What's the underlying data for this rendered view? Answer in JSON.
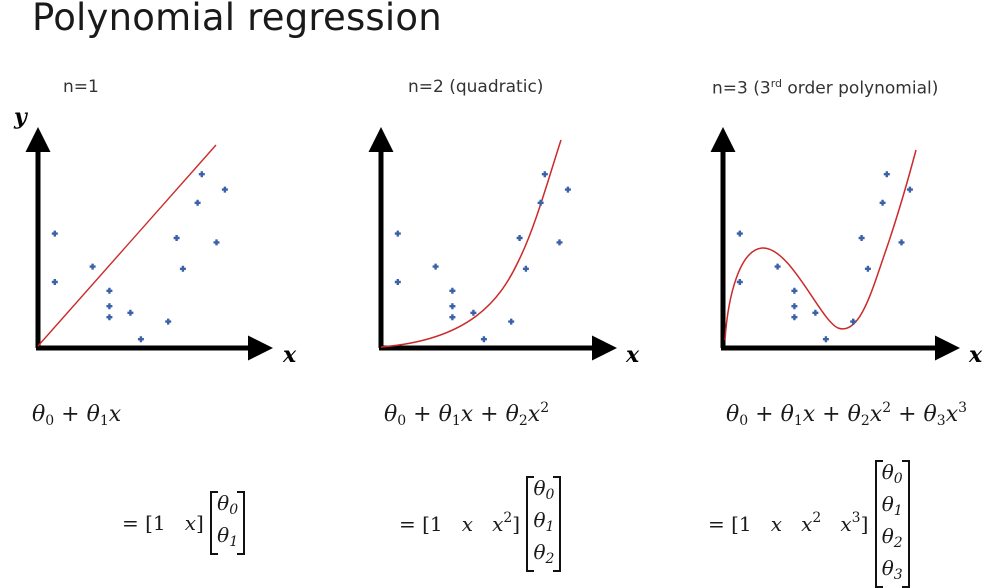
{
  "title": "Polynomial regression",
  "panels": [
    {
      "label": "n=1",
      "y_axis_label": "y",
      "x_axis_label": "x",
      "formula": {
        "terms": [
          "θ0",
          "θ1x"
        ]
      },
      "row_vector": [
        "1",
        "x"
      ],
      "col_vector": [
        "θ0",
        "θ1"
      ]
    },
    {
      "label": "n=2 (quadratic)",
      "x_axis_label": "x",
      "formula": {
        "terms": [
          "θ0",
          "θ1x",
          "θ2x2"
        ]
      },
      "row_vector": [
        "1",
        "x",
        "x2"
      ],
      "col_vector": [
        "θ0",
        "θ1",
        "θ2"
      ]
    },
    {
      "label_main": "n=3 (3",
      "label_sup": "rd",
      "label_tail": " order polynomial)",
      "x_axis_label": "x",
      "formula": {
        "terms": [
          "θ0",
          "θ1x",
          "θ2x2",
          "θ3x3"
        ]
      },
      "row_vector": [
        "1",
        "x",
        "x2",
        "x3"
      ],
      "col_vector": [
        "θ0",
        "θ1",
        "θ2",
        "θ3"
      ]
    }
  ],
  "colors": {
    "points": "#3a62a8",
    "fit_curve": "#cc2a2a",
    "axes": "#000000"
  },
  "chart_data": {
    "type": "scatter",
    "points": [
      [
        0.8,
        5.2
      ],
      [
        0.8,
        3.0
      ],
      [
        2.6,
        3.7
      ],
      [
        3.4,
        2.6
      ],
      [
        3.4,
        1.9
      ],
      [
        3.4,
        1.4
      ],
      [
        4.4,
        1.6
      ],
      [
        4.9,
        0.4
      ],
      [
        6.2,
        1.2
      ],
      [
        6.6,
        5.0
      ],
      [
        6.9,
        3.6
      ],
      [
        7.6,
        6.6
      ],
      [
        7.8,
        7.9
      ],
      [
        8.5,
        4.8
      ],
      [
        8.9,
        7.2
      ]
    ],
    "ranges": {
      "x": [
        0,
        10
      ],
      "y": [
        0,
        10
      ]
    },
    "grid": false
  }
}
